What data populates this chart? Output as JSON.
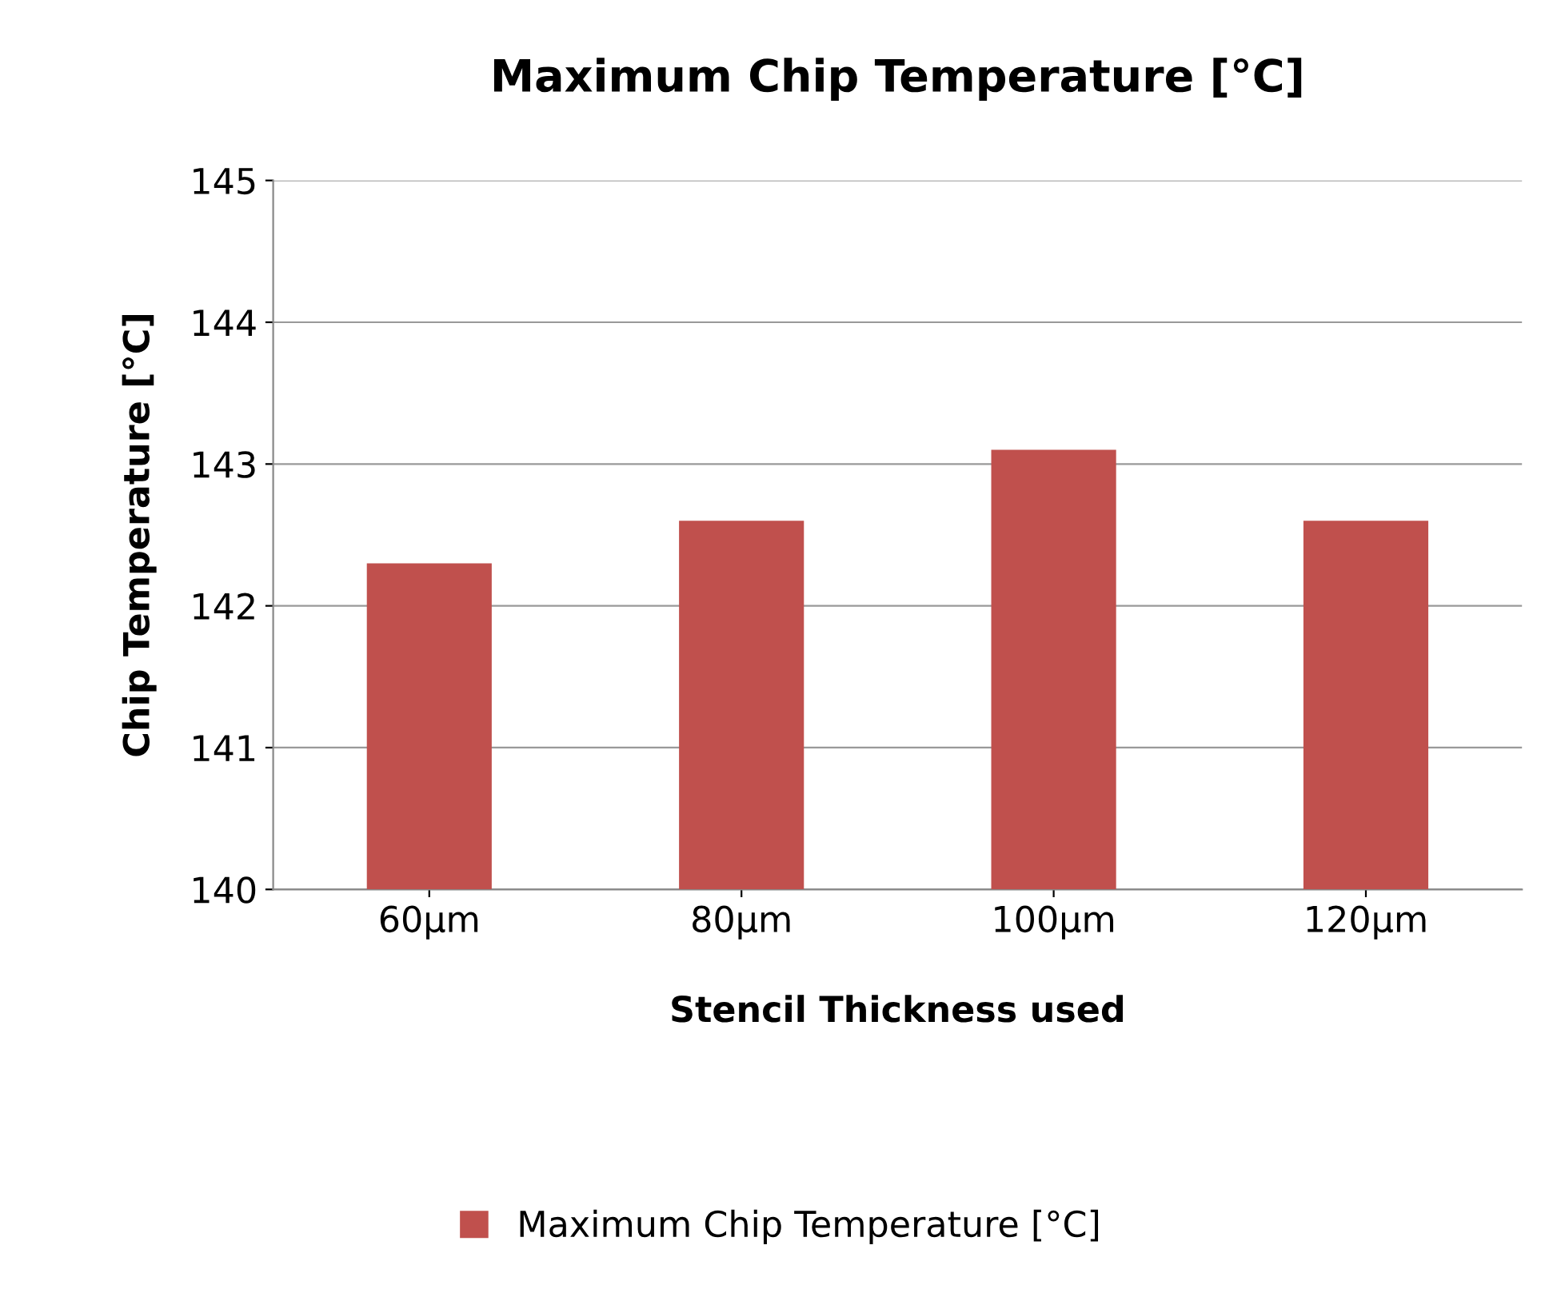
{
  "chart_data": {
    "type": "bar",
    "title": "Maximum Chip Temperature [°C]",
    "xlabel": "Stencil Thickness used",
    "ylabel": "Chip Temperature [°C]",
    "categories": [
      "60µm",
      "80µm",
      "100µm",
      "120µm"
    ],
    "series": [
      {
        "name": "Maximum Chip Temperature [°C]",
        "color": "#c0504d",
        "values": [
          142.3,
          142.6,
          143.1,
          142.6
        ]
      }
    ],
    "ylim": [
      140,
      145
    ],
    "yticks": [
      140,
      141,
      142,
      143,
      144,
      145
    ],
    "grid": "y",
    "legend": "bottom"
  }
}
